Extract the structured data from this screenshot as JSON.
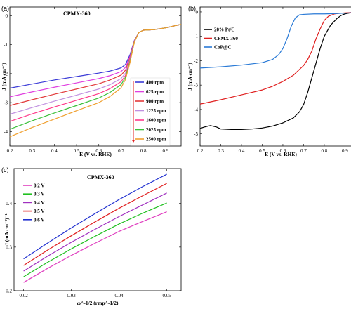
{
  "chart_data": [
    {
      "panel_label": "(a)",
      "type": "line",
      "title": "CPMX-360",
      "xlabel": "E (V vs. RHE)",
      "ylabel": "J (mA cm⁻²)",
      "xlim": [
        0.2,
        0.97
      ],
      "ylim": [
        -4.5,
        0.3
      ],
      "xticks": [
        "0.2",
        "0.3",
        "0.4",
        "0.5",
        "0.6",
        "0.7",
        "0.8",
        "0.9"
      ],
      "yticks": [
        "0",
        "-1",
        "-2",
        "-3",
        "-4"
      ],
      "legend_position": "right",
      "series": [
        {
          "name": "400 rpm",
          "color": "#3a3ad6",
          "x": [
            0.2,
            0.3,
            0.4,
            0.5,
            0.6,
            0.65,
            0.7,
            0.72,
            0.74,
            0.76,
            0.78,
            0.8,
            0.85,
            0.9,
            0.97
          ],
          "y": [
            -2.5,
            -2.36,
            -2.22,
            -2.1,
            -1.98,
            -1.91,
            -1.8,
            -1.68,
            -1.35,
            -0.85,
            -0.58,
            -0.5,
            -0.48,
            -0.42,
            -0.3
          ]
        },
        {
          "name": "625 rpm",
          "color": "#e040e0",
          "x": [
            0.2,
            0.3,
            0.4,
            0.5,
            0.6,
            0.65,
            0.7,
            0.72,
            0.74,
            0.76,
            0.78,
            0.8,
            0.85,
            0.9,
            0.97
          ],
          "y": [
            -2.8,
            -2.63,
            -2.47,
            -2.32,
            -2.17,
            -2.07,
            -1.93,
            -1.78,
            -1.4,
            -0.86,
            -0.58,
            -0.5,
            -0.48,
            -0.42,
            -0.3
          ]
        },
        {
          "name": "900 rpm",
          "color": "#e23a3a",
          "x": [
            0.2,
            0.3,
            0.4,
            0.5,
            0.6,
            0.65,
            0.7,
            0.72,
            0.74,
            0.76,
            0.78,
            0.8,
            0.85,
            0.9,
            0.97
          ],
          "y": [
            -3.1,
            -2.9,
            -2.71,
            -2.53,
            -2.35,
            -2.22,
            -2.05,
            -1.88,
            -1.45,
            -0.87,
            -0.58,
            -0.5,
            -0.48,
            -0.42,
            -0.3
          ]
        },
        {
          "name": "1225 rpm",
          "color": "#c090e0",
          "x": [
            0.2,
            0.3,
            0.4,
            0.5,
            0.6,
            0.65,
            0.7,
            0.72,
            0.74,
            0.76,
            0.78,
            0.8,
            0.85,
            0.9,
            0.97
          ],
          "y": [
            -3.4,
            -3.17,
            -2.95,
            -2.74,
            -2.53,
            -2.38,
            -2.17,
            -1.98,
            -1.5,
            -0.88,
            -0.58,
            -0.5,
            -0.48,
            -0.42,
            -0.3
          ]
        },
        {
          "name": "1600 rpm",
          "color": "#ff3a8a",
          "x": [
            0.2,
            0.3,
            0.4,
            0.5,
            0.6,
            0.65,
            0.7,
            0.72,
            0.74,
            0.76,
            0.78,
            0.8,
            0.85,
            0.9,
            0.97
          ],
          "y": [
            -3.65,
            -3.39,
            -3.15,
            -2.92,
            -2.69,
            -2.52,
            -2.28,
            -2.06,
            -1.55,
            -0.89,
            -0.58,
            -0.5,
            -0.48,
            -0.42,
            -0.3
          ]
        },
        {
          "name": "2025 rpm",
          "color": "#3ac03a",
          "x": [
            0.2,
            0.3,
            0.4,
            0.5,
            0.6,
            0.65,
            0.7,
            0.72,
            0.74,
            0.76,
            0.78,
            0.8,
            0.85,
            0.9,
            0.97
          ],
          "y": [
            -3.92,
            -3.63,
            -3.36,
            -3.1,
            -2.84,
            -2.65,
            -2.38,
            -2.13,
            -1.58,
            -0.9,
            -0.58,
            -0.5,
            -0.48,
            -0.42,
            -0.3
          ]
        },
        {
          "name": "2500 rpm",
          "color": "#f0a030",
          "x": [
            0.2,
            0.3,
            0.4,
            0.5,
            0.6,
            0.65,
            0.7,
            0.72,
            0.74,
            0.76,
            0.78,
            0.8,
            0.85,
            0.9,
            0.97
          ],
          "y": [
            -4.18,
            -3.86,
            -3.57,
            -3.28,
            -3.0,
            -2.79,
            -2.49,
            -2.2,
            -1.62,
            -0.91,
            -0.58,
            -0.5,
            -0.48,
            -0.42,
            -0.3
          ]
        }
      ]
    },
    {
      "panel_label": "(b)",
      "type": "line",
      "title": "",
      "xlabel": "E (V vs. RHE)",
      "ylabel": "J (mA cm⁻²)",
      "xlim": [
        0.2,
        0.98
      ],
      "ylim": [
        -5.5,
        0.2
      ],
      "xticks": [
        "0.2",
        "0.3",
        "0.4",
        "0.5",
        "0.6",
        "0.7",
        "0.8",
        "0.9"
      ],
      "yticks": [
        "0",
        "-1",
        "-2",
        "-3",
        "-4",
        "-5"
      ],
      "legend_position": "top-left",
      "series": [
        {
          "name": "20% Pt/C",
          "color": "#000000",
          "x": [
            0.2,
            0.22,
            0.25,
            0.28,
            0.3,
            0.35,
            0.4,
            0.45,
            0.5,
            0.55,
            0.6,
            0.65,
            0.68,
            0.7,
            0.72,
            0.75,
            0.78,
            0.8,
            0.83,
            0.86,
            0.88,
            0.9,
            0.93,
            0.96,
            0.98
          ],
          "y": [
            -4.78,
            -4.72,
            -4.66,
            -4.72,
            -4.8,
            -4.82,
            -4.82,
            -4.8,
            -4.76,
            -4.68,
            -4.55,
            -4.35,
            -4.1,
            -3.8,
            -3.3,
            -2.4,
            -1.5,
            -1.0,
            -0.55,
            -0.28,
            -0.15,
            -0.08,
            -0.03,
            -0.01,
            0.0
          ]
        },
        {
          "name": "CPMX-360",
          "color": "#e02020",
          "x": [
            0.2,
            0.3,
            0.4,
            0.5,
            0.55,
            0.6,
            0.65,
            0.7,
            0.72,
            0.74,
            0.76,
            0.78,
            0.8,
            0.82,
            0.85,
            0.88,
            0.92,
            0.96,
            0.98
          ],
          "y": [
            -3.78,
            -3.6,
            -3.4,
            -3.2,
            -3.05,
            -2.85,
            -2.6,
            -2.2,
            -1.95,
            -1.6,
            -1.1,
            -0.7,
            -0.35,
            -0.18,
            -0.08,
            -0.05,
            -0.03,
            -0.02,
            -0.01
          ]
        },
        {
          "name": "CoP@C",
          "color": "#2a7ad6",
          "x": [
            0.2,
            0.3,
            0.4,
            0.5,
            0.55,
            0.58,
            0.6,
            0.62,
            0.64,
            0.66,
            0.68,
            0.7,
            0.75,
            0.8,
            0.85,
            0.9,
            0.95,
            0.98
          ],
          "y": [
            -2.3,
            -2.25,
            -2.18,
            -2.08,
            -1.95,
            -1.75,
            -1.5,
            -1.1,
            -0.6,
            -0.25,
            -0.12,
            -0.1,
            -0.08,
            -0.08,
            -0.07,
            -0.05,
            -0.03,
            -0.02
          ]
        }
      ]
    },
    {
      "panel_label": "(c)",
      "type": "line",
      "title": "CPMX-360",
      "xlabel": "ω^-1/2 (rmp^-1/2)",
      "ylabel": "J (mA cm⁻²)⁻¹",
      "xlim": [
        0.018,
        0.053
      ],
      "ylim": [
        0.2,
        0.48
      ],
      "xticks": [
        "0.02",
        "0.03",
        "0.04",
        "0.05"
      ],
      "yticks": [
        "0.2",
        "0.3",
        "0.4"
      ],
      "legend_position": "top-left",
      "series": [
        {
          "name": "0.2 V",
          "color": "#e040c0",
          "x": [
            0.02,
            0.025,
            0.03,
            0.035,
            0.04,
            0.045,
            0.05
          ],
          "y": [
            0.219,
            0.251,
            0.281,
            0.309,
            0.336,
            0.359,
            0.381
          ]
        },
        {
          "name": "0.3 V",
          "color": "#20c020",
          "x": [
            0.02,
            0.025,
            0.03,
            0.035,
            0.04,
            0.045,
            0.05
          ],
          "y": [
            0.232,
            0.265,
            0.296,
            0.325,
            0.353,
            0.378,
            0.401
          ]
        },
        {
          "name": "0.4 V",
          "color": "#a030c0",
          "x": [
            0.02,
            0.025,
            0.03,
            0.035,
            0.04,
            0.045,
            0.05
          ],
          "y": [
            0.245,
            0.279,
            0.311,
            0.341,
            0.37,
            0.397,
            0.424
          ]
        },
        {
          "name": "0.5 V",
          "color": "#e02020",
          "x": [
            0.02,
            0.025,
            0.03,
            0.035,
            0.04,
            0.045,
            0.05
          ],
          "y": [
            0.258,
            0.293,
            0.326,
            0.358,
            0.389,
            0.418,
            0.446
          ]
        },
        {
          "name": "0.6 V",
          "color": "#2030d0",
          "x": [
            0.02,
            0.025,
            0.03,
            0.035,
            0.04,
            0.045,
            0.05
          ],
          "y": [
            0.273,
            0.309,
            0.344,
            0.377,
            0.409,
            0.439,
            0.467
          ]
        }
      ]
    }
  ]
}
